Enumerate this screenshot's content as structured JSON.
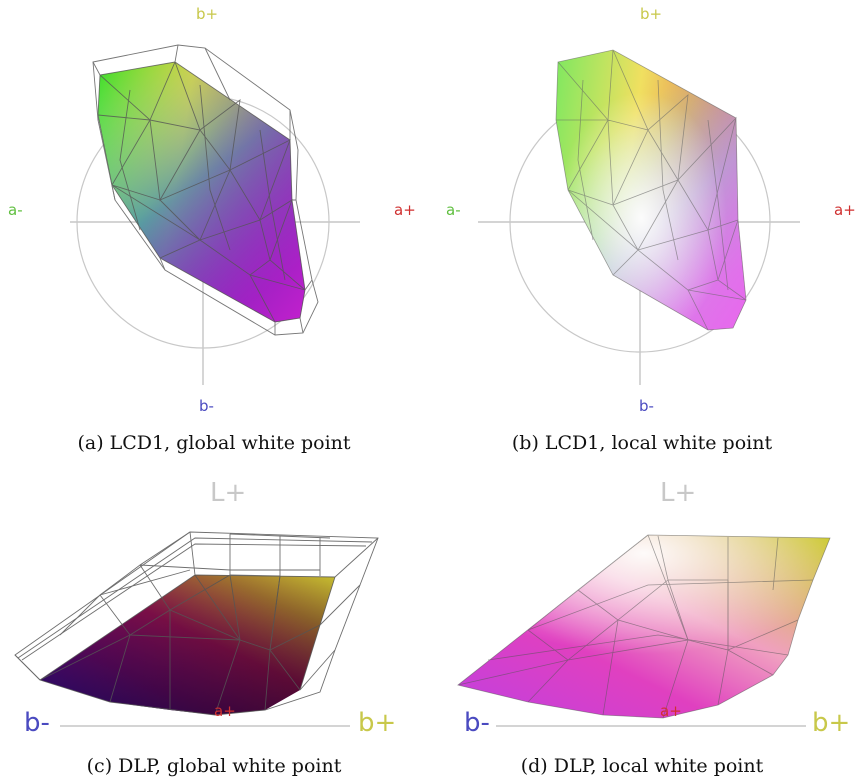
{
  "colors": {
    "a_minus": "#5fbf3f",
    "a_plus": "#d03030",
    "b_plus": "#c8c84a",
    "b_minus": "#4a4ac0",
    "l_plus": "#c8c8c8"
  },
  "panels": [
    {
      "caption": "(a) LCD1, global white point",
      "labels": {
        "top": "b+",
        "left": "a-",
        "right": "a+",
        "bottom": "b-"
      }
    },
    {
      "caption": "(b) LCD1, local white point",
      "labels": {
        "top": "b+",
        "left": "a-",
        "right": "a+",
        "bottom": "b-"
      }
    },
    {
      "caption": "(c) DLP, global white point",
      "labels": {
        "top": "L+",
        "left": "b-",
        "center": "a+",
        "right": "b+"
      }
    },
    {
      "caption": "(d) DLP, local white point",
      "labels": {
        "top": "L+",
        "left": "b-",
        "center": "a+",
        "right": "b+"
      }
    }
  ]
}
